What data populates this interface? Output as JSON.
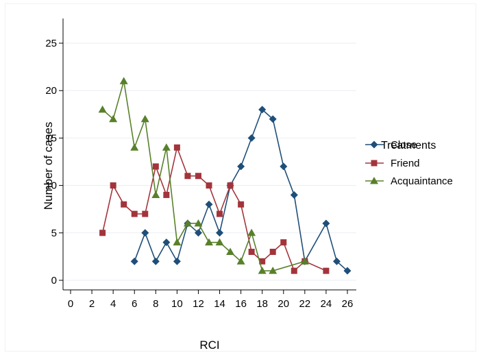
{
  "chart_data": {
    "type": "line",
    "title": "",
    "xlabel": "RCI",
    "ylabel": "Number of cases",
    "xlim": [
      -1,
      27
    ],
    "ylim": [
      -1,
      28
    ],
    "xticks": [
      0,
      2,
      4,
      6,
      8,
      10,
      12,
      14,
      16,
      18,
      20,
      22,
      24,
      26
    ],
    "yticks": [
      0,
      5,
      10,
      15,
      20,
      25
    ],
    "grid": "horizontal",
    "legend": {
      "title": "Treatments",
      "placement": "right"
    },
    "series": [
      {
        "name": "Close",
        "color": "#1f4e79",
        "marker": "diamond",
        "x": [
          6,
          7,
          8,
          9,
          10,
          11,
          12,
          13,
          14,
          15,
          16,
          17,
          18,
          19,
          20,
          21,
          22,
          24,
          25,
          26
        ],
        "y": [
          2,
          5,
          2,
          4,
          2,
          6,
          5,
          8,
          5,
          10,
          12,
          15,
          18,
          17,
          12,
          9,
          2,
          6,
          2,
          1
        ]
      },
      {
        "name": "Friend",
        "color": "#a3343c",
        "marker": "square",
        "x": [
          3,
          4,
          5,
          6,
          7,
          8,
          9,
          10,
          11,
          12,
          13,
          14,
          15,
          16,
          17,
          18,
          19,
          20,
          21,
          22,
          24
        ],
        "y": [
          5,
          10,
          8,
          7,
          7,
          12,
          9,
          14,
          11,
          11,
          10,
          7,
          10,
          8,
          3,
          2,
          3,
          4,
          1,
          2,
          1
        ]
      },
      {
        "name": "Acquaintance",
        "color": "#58802a",
        "marker": "triangle",
        "x": [
          3,
          4,
          5,
          6,
          7,
          8,
          9,
          10,
          11,
          12,
          13,
          14,
          15,
          16,
          17,
          18,
          19,
          22
        ],
        "y": [
          18,
          17,
          21,
          14,
          17,
          9,
          14,
          4,
          6,
          6,
          4,
          4,
          3,
          2,
          5,
          1,
          1,
          2
        ]
      }
    ]
  }
}
